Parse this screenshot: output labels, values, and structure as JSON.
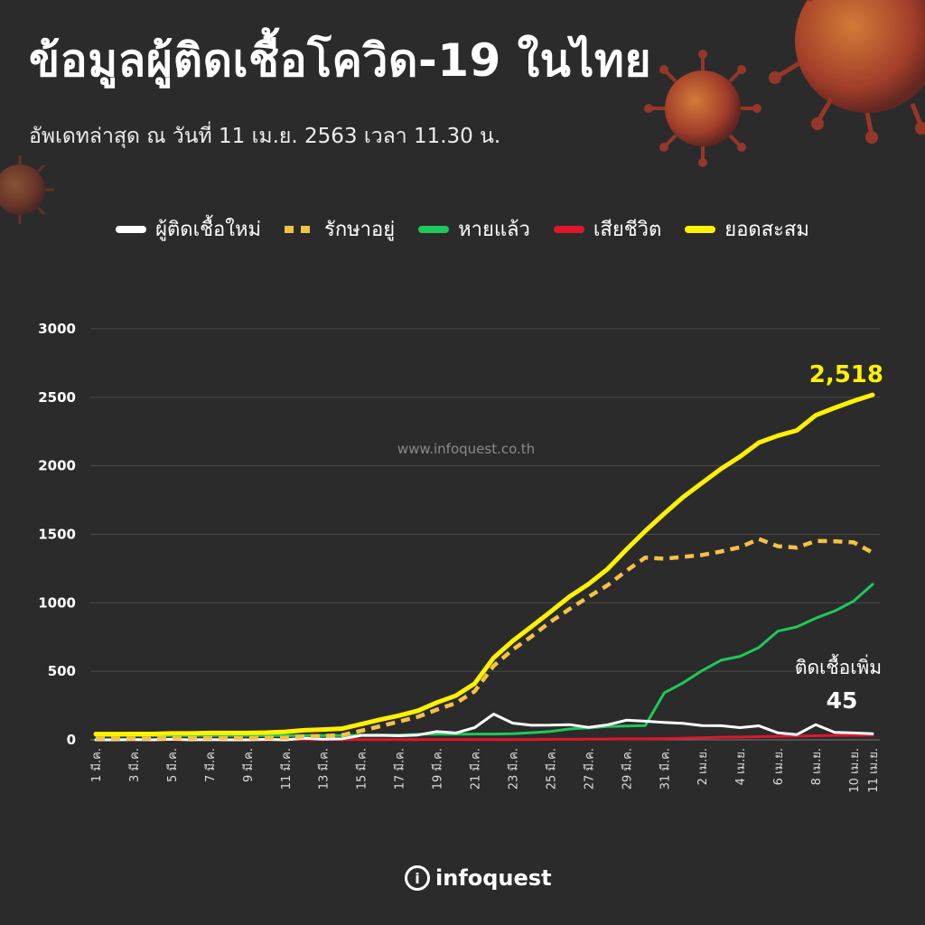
{
  "header": {
    "title": "ข้อมูลผู้ติดเชื้อโควิด-19 ในไทย",
    "subtitle": "อัพเดทล่าสุด ณ วันที่ 11 เม.ย. 2563 เวลา 11.30 น."
  },
  "watermark": "www.infoquest.co.th",
  "logo_text": "infoquest",
  "colors": {
    "background": "#2b2b2b",
    "new_cases": "#ffffff",
    "active": "#f4c243",
    "recovered": "#1fc85a",
    "deaths": "#e0162b",
    "cumulative": "#fff200"
  },
  "chart_data": {
    "type": "line",
    "ylim": [
      0,
      3000
    ],
    "yticks": [
      0,
      500,
      1000,
      1500,
      2000,
      2500,
      3000
    ],
    "grid": true,
    "legend_position": "top",
    "x": [
      "1 มี.ค.",
      "2 มี.ค.",
      "3 มี.ค.",
      "4 มี.ค.",
      "5 มี.ค.",
      "6 มี.ค.",
      "7 มี.ค.",
      "8 มี.ค.",
      "9 มี.ค.",
      "10 มี.ค.",
      "11 มี.ค.",
      "12 มี.ค.",
      "13 มี.ค.",
      "14 มี.ค.",
      "15 มี.ค.",
      "16 มี.ค.",
      "17 มี.ค.",
      "18 มี.ค.",
      "19 มี.ค.",
      "20 มี.ค.",
      "21 มี.ค.",
      "22 มี.ค.",
      "23 มี.ค.",
      "24 มี.ค.",
      "25 มี.ค.",
      "26 มี.ค.",
      "27 มี.ค.",
      "28 มี.ค.",
      "29 มี.ค.",
      "30 มี.ค.",
      "31 มี.ค.",
      "1 เม.ย.",
      "2 เม.ย.",
      "3 เม.ย.",
      "4 เม.ย.",
      "5 เม.ย.",
      "6 เม.ย.",
      "7 เม.ย.",
      "8 เม.ย.",
      "9 เม.ย.",
      "10 เม.ย.",
      "11 เม.ย."
    ],
    "tick_labels": [
      "1 มี.ค.",
      "3 มี.ค.",
      "5 มี.ค.",
      "7 มี.ค.",
      "9 มี.ค.",
      "11 มี.ค.",
      "13 มี.ค.",
      "15 มี.ค.",
      "17 มี.ค.",
      "19 มี.ค.",
      "21 มี.ค.",
      "23 มี.ค.",
      "25 มี.ค.",
      "27 มี.ค.",
      "29 มี.ค.",
      "31 มี.ค.",
      "2 เม.ย.",
      "4 เม.ย.",
      "6 เม.ย.",
      "8 เม.ย.",
      "10 เม.ย.",
      "11 เม.ย."
    ],
    "series": [
      {
        "name": "ผู้ติดเชื้อใหม่",
        "key": "new_cases",
        "style": "solid",
        "values": [
          0,
          0,
          1,
          0,
          4,
          0,
          2,
          0,
          0,
          3,
          0,
          11,
          5,
          7,
          32,
          33,
          30,
          35,
          60,
          50,
          89,
          188,
          122,
          106,
          107,
          111,
          91,
          109,
          143,
          136,
          127,
          120,
          104,
          103,
          89,
          102,
          51,
          38,
          111,
          54,
          50,
          45
        ]
      },
      {
        "name": "รักษาอยู่",
        "key": "active",
        "style": "dashed",
        "values": [
          10,
          10,
          10,
          10,
          12,
          12,
          13,
          13,
          12,
          15,
          15,
          26,
          28,
          34,
          66,
          99,
          133,
          168,
          220,
          268,
          354,
          540,
          658,
          754,
          862,
          954,
          1043,
          1127,
          1233,
          1330,
          1322,
          1335,
          1349,
          1375,
          1406,
          1466,
          1413,
          1403,
          1452,
          1449,
          1441,
          1366
        ]
      },
      {
        "name": "หายแล้ว",
        "key": "recovered",
        "style": "solid",
        "values": [
          31,
          31,
          31,
          31,
          31,
          31,
          31,
          31,
          31,
          31,
          31,
          31,
          31,
          31,
          35,
          35,
          35,
          40,
          41,
          41,
          42,
          42,
          44,
          52,
          61,
          79,
          88,
          97,
          100,
          104,
          342,
          416,
          505,
          581,
          609,
          674,
          793,
          824,
          888,
          940,
          1013,
          1135
        ]
      },
      {
        "name": "เสียชีวิต",
        "key": "deaths",
        "style": "solid",
        "values": [
          1,
          1,
          1,
          1,
          1,
          1,
          1,
          1,
          1,
          1,
          1,
          1,
          1,
          1,
          1,
          1,
          1,
          1,
          1,
          1,
          1,
          1,
          1,
          1,
          4,
          4,
          5,
          6,
          7,
          7,
          9,
          12,
          15,
          19,
          20,
          23,
          26,
          27,
          30,
          32,
          33,
          35
        ]
      },
      {
        "name": "ยอดสะสม",
        "key": "cumulative",
        "style": "solid",
        "values": [
          42,
          42,
          43,
          43,
          47,
          47,
          50,
          50,
          50,
          53,
          59,
          70,
          75,
          82,
          114,
          147,
          177,
          212,
          272,
          322,
          411,
          599,
          721,
          827,
          934,
          1045,
          1136,
          1245,
          1388,
          1524,
          1651,
          1771,
          1875,
          1978,
          2067,
          2169,
          2220,
          2258,
          2369,
          2423,
          2473,
          2518
        ]
      }
    ],
    "annotations": {
      "cumulative_value": "2,518",
      "new_cases_label": "ติดเชื้อเพิ่ม",
      "new_cases_value": "45"
    }
  }
}
